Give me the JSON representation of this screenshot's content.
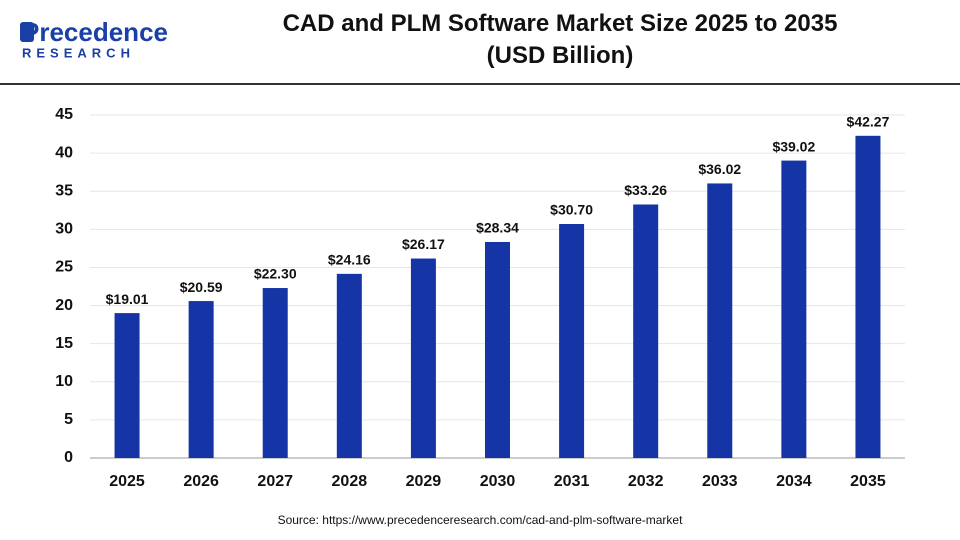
{
  "logo": {
    "name": "Precedence",
    "tagline": "RESEARCH"
  },
  "chart_data": {
    "type": "bar",
    "title": "CAD and PLM Software Market Size 2025 to 2035 (USD Billion)",
    "categories": [
      "2025",
      "2026",
      "2027",
      "2028",
      "2029",
      "2030",
      "2031",
      "2032",
      "2033",
      "2034",
      "2035"
    ],
    "values": [
      19.01,
      20.59,
      22.3,
      24.16,
      26.17,
      28.34,
      30.7,
      33.26,
      36.02,
      39.02,
      42.27
    ],
    "value_labels": [
      "$19.01",
      "$20.59",
      "$22.30",
      "$24.16",
      "$26.17",
      "$28.34",
      "$30.70",
      "$33.26",
      "$36.02",
      "$39.02",
      "$42.27"
    ],
    "color": "#1535a6",
    "ylim": [
      0,
      45
    ],
    "yticks": [
      0,
      5,
      10,
      15,
      20,
      25,
      30,
      35,
      40,
      45
    ],
    "grid": true,
    "source": "Source: https://www.precedenceresearch.com/cad-and-plm-software-market"
  }
}
